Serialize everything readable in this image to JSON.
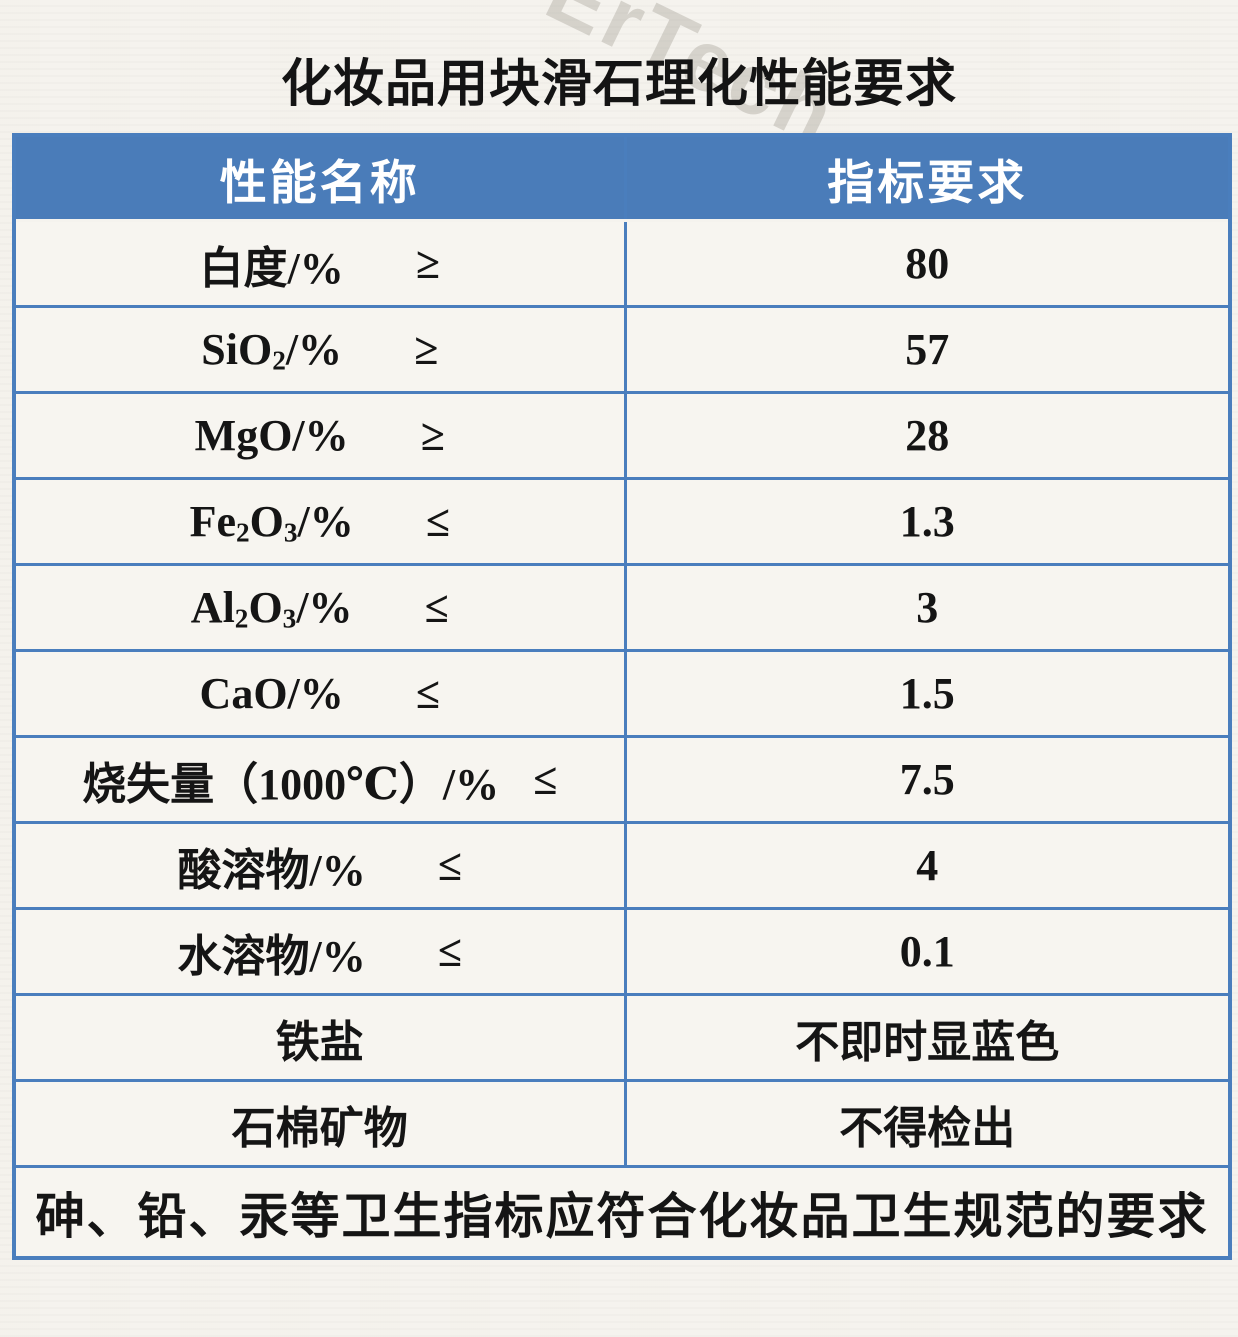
{
  "page": {
    "title": "化妆品用块滑石理化性能要求",
    "watermark": "ErTech"
  },
  "colors": {
    "header_background": "#4a7cb9",
    "table_border": "#4a7ebd",
    "paper_background": "#f5f3ee",
    "cell_background": "#f7f5f0",
    "header_text": "#ffffff",
    "body_text": "#151515",
    "watermark_text": "#a8a298"
  },
  "table": {
    "headers": {
      "property": "性能名称",
      "requirement": "指标要求"
    },
    "rows": [
      {
        "name": "白度/%",
        "op": "≥",
        "value": "80"
      },
      {
        "name": "SiO₂/%",
        "op": "≥",
        "value": "57"
      },
      {
        "name": "MgO/%",
        "op": "≥",
        "value": "28"
      },
      {
        "name": "Fe₂O₃/%",
        "op": "≤",
        "value": "1.3"
      },
      {
        "name": "Al₂O₃/%",
        "op": "≤",
        "value": "3"
      },
      {
        "name": "CaO/%",
        "op": "≤",
        "value": "1.5"
      },
      {
        "name": "烧失量（1000℃）/%",
        "op": "≤",
        "value": "7.5"
      },
      {
        "name": "酸溶物/%",
        "op": "≤",
        "value": "4"
      },
      {
        "name": "水溶物/%",
        "op": "≤",
        "value": "0.1"
      },
      {
        "name": "铁盐",
        "op": "",
        "value": "不即时显蓝色"
      },
      {
        "name": "石棉矿物",
        "op": "",
        "value": "不得检出"
      }
    ],
    "footnote": "砷、铅、汞等卫生指标应符合化妆品卫生规范的要求"
  }
}
